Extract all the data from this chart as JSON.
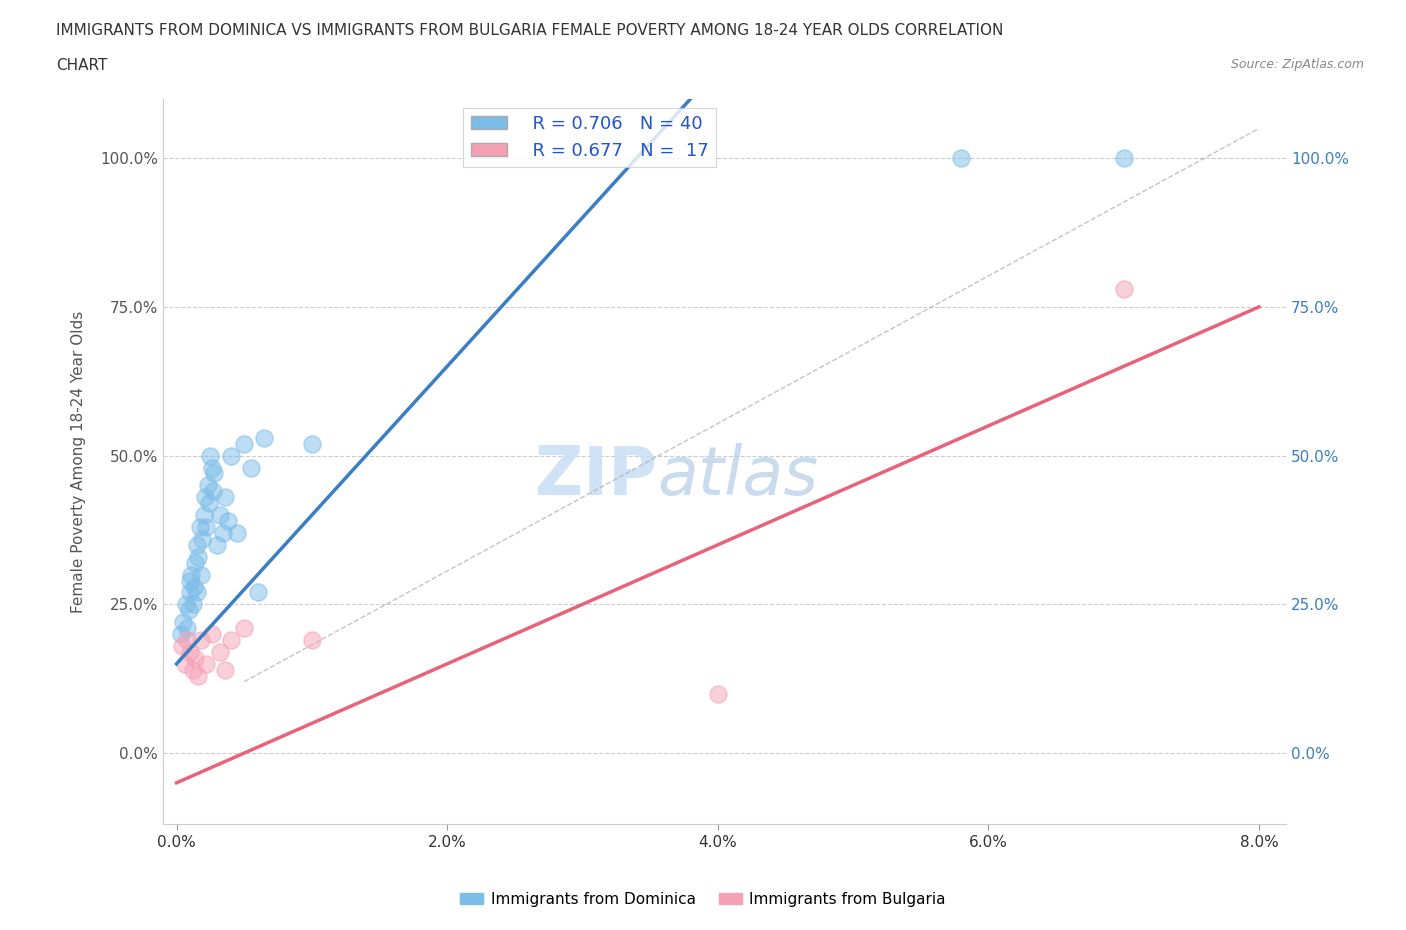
{
  "title_line1": "IMMIGRANTS FROM DOMINICA VS IMMIGRANTS FROM BULGARIA FEMALE POVERTY AMONG 18-24 YEAR OLDS CORRELATION",
  "title_line2": "CHART",
  "source_text": "Source: ZipAtlas.com",
  "ylabel": "Female Poverty Among 18-24 Year Olds",
  "dominica_color": "#7bbce8",
  "bulgaria_color": "#f4a0b5",
  "dominica_line_color": "#3a7fc1",
  "bulgaria_line_color": "#e8637a",
  "dominica_R": 0.706,
  "dominica_N": 40,
  "bulgaria_R": 0.677,
  "bulgaria_N": 17,
  "xlim": [
    0.0,
    0.08
  ],
  "ylim_low": -0.1,
  "ylim_high": 1.1,
  "xtick_labels": [
    "0.0%",
    "2.0%",
    "4.0%",
    "6.0%",
    "8.0%"
  ],
  "xtick_vals": [
    0.0,
    0.02,
    0.04,
    0.06,
    0.08
  ],
  "ytick_labels": [
    "0.0%",
    "25.0%",
    "50.0%",
    "75.0%",
    "100.0%"
  ],
  "ytick_vals": [
    0.0,
    0.25,
    0.5,
    0.75,
    1.0
  ],
  "ytick_right_color": "#3a7fc1",
  "watermark_zip": "ZIP",
  "watermark_atlas": "atlas",
  "dominica_x": [
    0.0003,
    0.0005,
    0.0007,
    0.0008,
    0.0009,
    0.001,
    0.001,
    0.0011,
    0.0012,
    0.0013,
    0.0014,
    0.0015,
    0.0015,
    0.0016,
    0.0017,
    0.0018,
    0.0019,
    0.002,
    0.0021,
    0.0022,
    0.0023,
    0.0024,
    0.0025,
    0.0026,
    0.0027,
    0.0028,
    0.003,
    0.0032,
    0.0034,
    0.0036,
    0.0038,
    0.004,
    0.0045,
    0.005,
    0.0055,
    0.006,
    0.0065,
    0.01,
    0.058,
    0.07
  ],
  "dominica_y": [
    0.2,
    0.22,
    0.25,
    0.21,
    0.24,
    0.27,
    0.29,
    0.3,
    0.25,
    0.28,
    0.32,
    0.27,
    0.35,
    0.33,
    0.38,
    0.3,
    0.36,
    0.4,
    0.43,
    0.38,
    0.45,
    0.42,
    0.5,
    0.48,
    0.44,
    0.47,
    0.35,
    0.4,
    0.37,
    0.43,
    0.39,
    0.5,
    0.37,
    0.52,
    0.48,
    0.27,
    0.53,
    0.52,
    1.0,
    1.0
  ],
  "bulgaria_x": [
    0.0004,
    0.0006,
    0.0008,
    0.001,
    0.0012,
    0.0014,
    0.0016,
    0.0018,
    0.0022,
    0.0026,
    0.0032,
    0.0036,
    0.004,
    0.005,
    0.01,
    0.04,
    0.07
  ],
  "bulgaria_y": [
    0.18,
    0.15,
    0.19,
    0.17,
    0.14,
    0.16,
    0.13,
    0.19,
    0.15,
    0.2,
    0.17,
    0.14,
    0.19,
    0.21,
    0.19,
    0.1,
    0.78
  ]
}
